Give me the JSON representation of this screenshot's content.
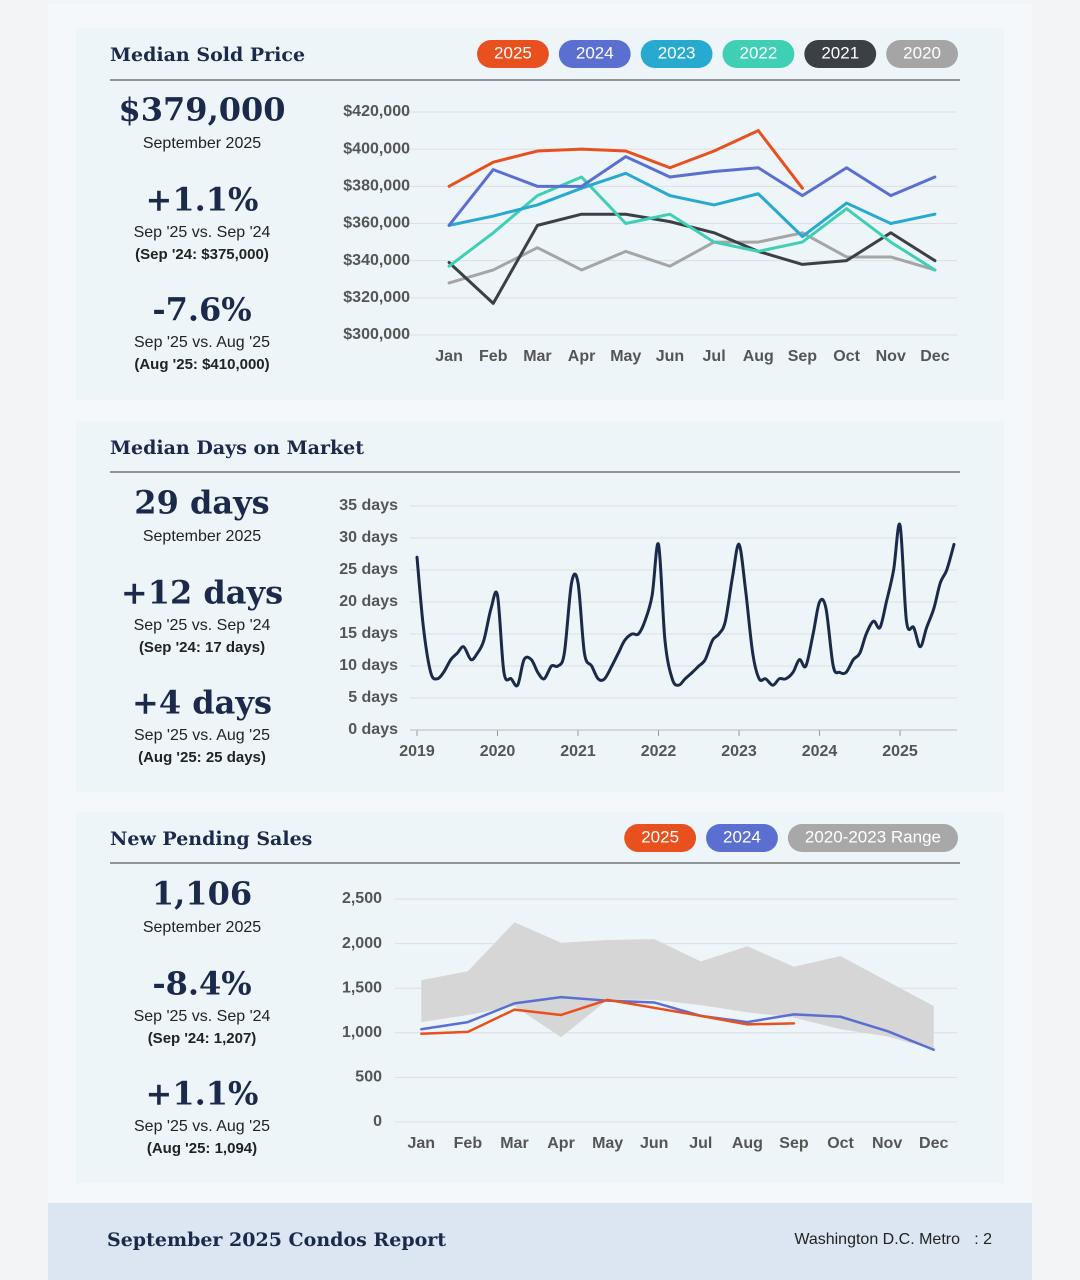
{
  "chart_data": [
    {
      "type": "line",
      "title": "Median Sold Price",
      "categories": [
        "Jan",
        "Feb",
        "Mar",
        "Apr",
        "May",
        "Jun",
        "Jul",
        "Aug",
        "Sep",
        "Oct",
        "Nov",
        "Dec"
      ],
      "ylim": [
        300000,
        420000
      ],
      "yticks": [
        {
          "value": 300000,
          "label": "$300,000"
        },
        {
          "value": 320000,
          "label": "$320,000"
        },
        {
          "value": 340000,
          "label": "$340,000"
        },
        {
          "value": 360000,
          "label": "$360,000"
        },
        {
          "value": 380000,
          "label": "$380,000"
        },
        {
          "value": 400000,
          "label": "$400,000"
        },
        {
          "value": 420000,
          "label": "$420,000"
        }
      ],
      "grid": true,
      "series": [
        {
          "name": "2025",
          "color": "#e8501e",
          "values": [
            380000,
            393000,
            399000,
            400000,
            399000,
            390000,
            399000,
            410000,
            379000,
            null,
            null,
            null
          ]
        },
        {
          "name": "2024",
          "color": "#5b6fd1",
          "values": [
            359000,
            389000,
            380000,
            380000,
            396000,
            385000,
            388000,
            390000,
            375000,
            390000,
            375000,
            385000
          ]
        },
        {
          "name": "2023",
          "color": "#27a9d0",
          "values": [
            359000,
            364000,
            370000,
            379000,
            387000,
            375000,
            370000,
            376000,
            353000,
            371000,
            360000,
            365000
          ]
        },
        {
          "name": "2022",
          "color": "#3ecfb5",
          "values": [
            337000,
            355000,
            375000,
            385000,
            360000,
            365000,
            350000,
            345000,
            350000,
            368000,
            350000,
            335000
          ]
        },
        {
          "name": "2021",
          "color": "#3b4047",
          "values": [
            339000,
            317000,
            359000,
            365000,
            365000,
            361000,
            355000,
            345000,
            338000,
            340000,
            355000,
            340000
          ]
        },
        {
          "name": "2020",
          "color": "#a5a5a5",
          "values": [
            328000,
            335000,
            347000,
            335000,
            345000,
            337000,
            350000,
            350000,
            355000,
            342000,
            342000,
            335000
          ]
        }
      ]
    },
    {
      "type": "line",
      "title": "Median Days on Market",
      "color": "#1b2a4a",
      "xlim": [
        2019,
        2025.7
      ],
      "xticks": [
        2019,
        2020,
        2021,
        2022,
        2023,
        2024,
        2025
      ],
      "ylim": [
        0,
        35
      ],
      "yticks": [
        {
          "value": 0,
          "label": "0 days"
        },
        {
          "value": 5,
          "label": "5 days"
        },
        {
          "value": 10,
          "label": "10 days"
        },
        {
          "value": 15,
          "label": "15 days"
        },
        {
          "value": 20,
          "label": "20 days"
        },
        {
          "value": 25,
          "label": "25 days"
        },
        {
          "value": 30,
          "label": "30 days"
        },
        {
          "value": 35,
          "label": "35 days"
        }
      ],
      "grid": true,
      "x": [
        2019,
        2019.08,
        2019.17,
        2019.25,
        2019.33,
        2019.42,
        2019.5,
        2019.58,
        2019.67,
        2019.75,
        2019.83,
        2019.92,
        2020,
        2020.08,
        2020.17,
        2020.25,
        2020.33,
        2020.42,
        2020.5,
        2020.58,
        2020.67,
        2020.75,
        2020.83,
        2020.92,
        2021,
        2021.08,
        2021.17,
        2021.25,
        2021.33,
        2021.42,
        2021.5,
        2021.58,
        2021.67,
        2021.75,
        2021.83,
        2021.92,
        2022,
        2022.08,
        2022.17,
        2022.25,
        2022.33,
        2022.42,
        2022.5,
        2022.58,
        2022.67,
        2022.75,
        2022.83,
        2022.92,
        2023,
        2023.08,
        2023.17,
        2023.25,
        2023.33,
        2023.42,
        2023.5,
        2023.58,
        2023.67,
        2023.75,
        2023.83,
        2023.92,
        2024,
        2024.08,
        2024.17,
        2024.25,
        2024.33,
        2024.42,
        2024.5,
        2024.58,
        2024.67,
        2024.75,
        2024.83,
        2024.92,
        2025,
        2025.08,
        2025.17,
        2025.25,
        2025.33,
        2025.42,
        2025.5,
        2025.58,
        2025.67
      ],
      "values": [
        27,
        16,
        9,
        8,
        9,
        11,
        12,
        13,
        11,
        12,
        14,
        19,
        21,
        9,
        8,
        7,
        11,
        11,
        9,
        8,
        10,
        10,
        12,
        23,
        23,
        12,
        10,
        8,
        8,
        10,
        12,
        14,
        15,
        15,
        17,
        21,
        29,
        14,
        8,
        7,
        8,
        9,
        10,
        11,
        14,
        15,
        17,
        24,
        29,
        22,
        12,
        8,
        8,
        7,
        8,
        8,
        9,
        11,
        10,
        15,
        20,
        19,
        10,
        9,
        9,
        11,
        12,
        15,
        17,
        16,
        20,
        25,
        32,
        17,
        16,
        13,
        16,
        19,
        23,
        25,
        29
      ]
    },
    {
      "type": "line",
      "title": "New Pending Sales",
      "categories": [
        "Jan",
        "Feb",
        "Mar",
        "Apr",
        "May",
        "Jun",
        "Jul",
        "Aug",
        "Sep",
        "Oct",
        "Nov",
        "Dec"
      ],
      "ylim": [
        0,
        2500
      ],
      "yticks": [
        0,
        500,
        {
          "value": 1000,
          "label": "1,000"
        },
        {
          "value": 1500,
          "label": "1,500"
        },
        {
          "value": 2000,
          "label": "2,000"
        },
        {
          "value": 2500,
          "label": "2,500"
        }
      ],
      "grid": true,
      "series": [
        {
          "name": "2025",
          "color": "#e8501e",
          "values": [
            990,
            1010,
            1260,
            1200,
            1370,
            1280,
            1190,
            1094,
            1106,
            null,
            null,
            null
          ]
        },
        {
          "name": "2024",
          "color": "#5b6fd1",
          "values": [
            1040,
            1120,
            1330,
            1400,
            1360,
            1340,
            1190,
            1120,
            1207,
            1180,
            1020,
            810
          ]
        },
        {
          "name": "2020-2023 Range",
          "color": "#a8a8a8",
          "fill": "#d6d6d6",
          "low": [
            1120,
            1200,
            1300,
            950,
            1370,
            1370,
            1310,
            1230,
            1170,
            1040,
            960,
            810
          ],
          "high": [
            1590,
            1690,
            2240,
            2010,
            2040,
            2050,
            1800,
            1970,
            1740,
            1860,
            1580,
            1300
          ]
        }
      ]
    }
  ],
  "stats": [
    {
      "value": "$379,000",
      "period": "September 2025",
      "changes": [
        {
          "value": "+1.1%",
          "label": "Sep '25 vs. Sep '24",
          "detail": "(Sep '24: $375,000)"
        },
        {
          "value": "-7.6%",
          "label": "Sep '25 vs. Aug '25",
          "detail": "(Aug '25: $410,000)"
        }
      ]
    },
    {
      "value": "29 days",
      "period": "September 2025",
      "changes": [
        {
          "value": "+12 days",
          "label": "Sep '25 vs. Sep '24",
          "detail": "(Sep '24: 17 days)"
        },
        {
          "value": "+4 days",
          "label": "Sep '25 vs. Aug '25",
          "detail": "(Aug '25: 25 days)"
        }
      ]
    },
    {
      "value": "1,106",
      "period": "September 2025",
      "changes": [
        {
          "value": "-8.4%",
          "label": "Sep '25 vs. Sep '24",
          "detail": "(Sep '24: 1,207)"
        },
        {
          "value": "+1.1%",
          "label": "Sep '25 vs. Aug '25",
          "detail": "(Aug '25: 1,094)"
        }
      ]
    }
  ],
  "footer": {
    "title": "September 2025 Condos Report",
    "region": "Washington D.C. Metro",
    "page": ": 2"
  }
}
